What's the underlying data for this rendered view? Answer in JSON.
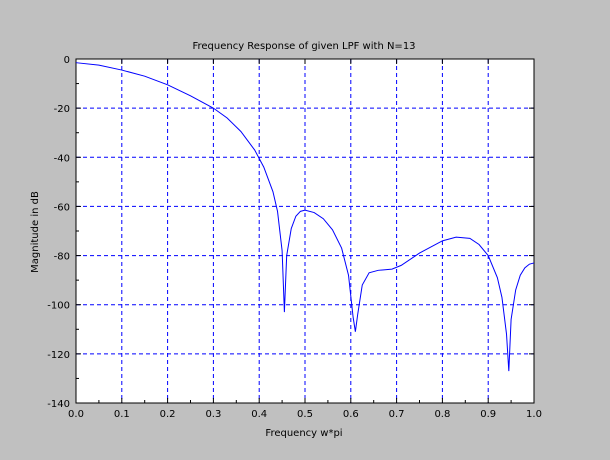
{
  "chart_data": {
    "type": "line",
    "title": "Frequency Response of given LPF with N=13",
    "xlabel": "Frequency w*pi",
    "ylabel": "Magnitude in dB",
    "xlim": [
      0,
      1
    ],
    "ylim": [
      -140,
      0
    ],
    "x_ticks": [
      "0.0",
      "0.1",
      "0.2",
      "0.3",
      "0.4",
      "0.5",
      "0.6",
      "0.7",
      "0.8",
      "0.9",
      "1.0"
    ],
    "y_ticks": [
      "0",
      "-20",
      "-40",
      "-60",
      "-80",
      "-100",
      "-120",
      "-140"
    ],
    "grid": true,
    "legend": "none",
    "colors": {
      "background": "#c0c0c0",
      "plot_area": "#ffffff",
      "line": "#0000ff",
      "grid": "#0000ff"
    },
    "series": [
      {
        "x": [
          0,
          0.05,
          0.1,
          0.15,
          0.2,
          0.25,
          0.3,
          0.33,
          0.36,
          0.39,
          0.41,
          0.43,
          0.44,
          0.45,
          0.455,
          0.46,
          0.47,
          0.48,
          0.49,
          0.5,
          0.52,
          0.54,
          0.56,
          0.58,
          0.595,
          0.605,
          0.61,
          0.615,
          0.625,
          0.64,
          0.66,
          0.69,
          0.71,
          0.75,
          0.8,
          0.83,
          0.86,
          0.88,
          0.9,
          0.92,
          0.93,
          0.94,
          0.945,
          0.95,
          0.96,
          0.97,
          0.98,
          0.99,
          1.0
        ],
        "y": [
          -1.5,
          -2.5,
          -4.5,
          -7,
          -10.5,
          -15,
          -20,
          -24,
          -29.5,
          -37,
          -44,
          -54,
          -62,
          -78,
          -103,
          -80,
          -69,
          -64,
          -62,
          -61.5,
          -62.5,
          -65,
          -69.5,
          -77,
          -88,
          -105,
          -111,
          -104,
          -92,
          -87,
          -86,
          -85.5,
          -84,
          -79,
          -74,
          -72.5,
          -73,
          -75.5,
          -80,
          -89,
          -97,
          -112,
          -127,
          -106,
          -94,
          -88,
          -85,
          -83.5,
          -83
        ]
      }
    ]
  }
}
